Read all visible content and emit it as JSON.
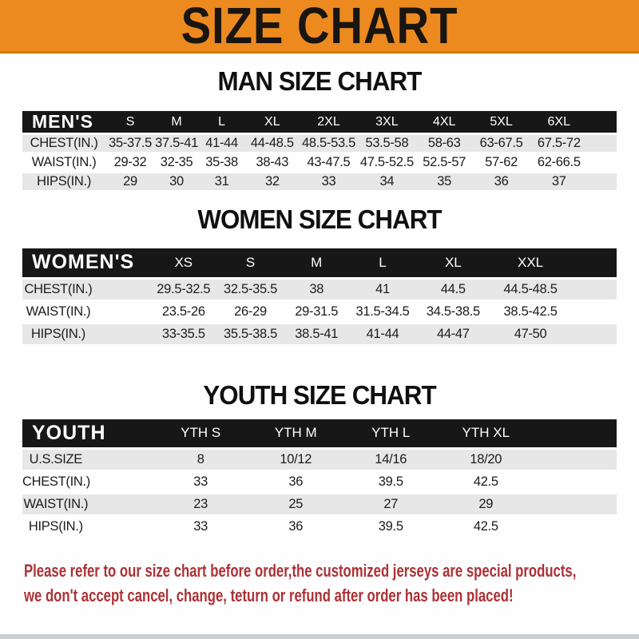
{
  "banner": {
    "title": "SIZE CHART"
  },
  "sections": [
    {
      "heading": "MAN SIZE CHART",
      "table": {
        "header_label": "MEN'S",
        "columns": [
          "S",
          "M",
          "L",
          "XL",
          "2XL",
          "3XL",
          "4XL",
          "5XL",
          "6XL"
        ],
        "rows": [
          {
            "label": "CHEST(IN.)",
            "values": [
              "35-37.5",
              "37.5-41",
              "41-44",
              "44-48.5",
              "48.5-53.5",
              "53.5-58",
              "58-63",
              "63-67.5",
              "67.5-72"
            ]
          },
          {
            "label": "WAIST(IN.)",
            "values": [
              "29-32",
              "32-35",
              "35-38",
              "38-43",
              "43-47.5",
              "47.5-52.5",
              "52.5-57",
              "57-62",
              "62-66.5"
            ]
          },
          {
            "label": "HIPS(IN.)",
            "values": [
              "29",
              "30",
              "31",
              "32",
              "33",
              "34",
              "35",
              "36",
              "37"
            ]
          }
        ]
      }
    },
    {
      "heading": "WOMEN SIZE CHART",
      "table": {
        "header_label": "WOMEN'S",
        "columns": [
          "XS",
          "S",
          "M",
          "L",
          "XL",
          "XXL"
        ],
        "rows": [
          {
            "label": "CHEST(IN.)",
            "values": [
              "29.5-32.5",
              "32.5-35.5",
              "38",
              "41",
              "44.5",
              "44.5-48.5"
            ]
          },
          {
            "label": "WAIST(IN.)",
            "values": [
              "23.5-26",
              "26-29",
              "29-31.5",
              "31.5-34.5",
              "34.5-38.5",
              "38.5-42.5"
            ]
          },
          {
            "label": "HIPS(IN.)",
            "values": [
              "33-35.5",
              "35.5-38.5",
              "38.5-41",
              "41-44",
              "44-47",
              "47-50"
            ]
          }
        ]
      }
    },
    {
      "heading": "YOUTH SIZE CHART",
      "table": {
        "header_label": "YOUTH",
        "columns": [
          "YTH S",
          "YTH M",
          "YTH L",
          "YTH XL"
        ],
        "rows": [
          {
            "label": "U.S.SIZE",
            "values": [
              "8",
              "10/12",
              "14/16",
              "18/20"
            ]
          },
          {
            "label": "CHEST(IN.)",
            "values": [
              "33",
              "36",
              "39.5",
              "42.5"
            ]
          },
          {
            "label": "WAIST(IN.)",
            "values": [
              "23",
              "25",
              "27",
              "29"
            ]
          },
          {
            "label": "HIPS(IN.)",
            "values": [
              "33",
              "36",
              "39.5",
              "42.5"
            ]
          }
        ]
      }
    }
  ],
  "footer": {
    "lines": [
      "Please refer to our size chart before order,the customized jerseys are special products,",
      "we don't accept cancel, change, teturn or refund after order has been placed!"
    ]
  },
  "colors": {
    "banner-bg": "#EC8A20",
    "banner-border": "#D2770E",
    "banner-text": "#191511",
    "bar-bg": "#171717",
    "bar-text": "#FFFFFF",
    "row-gray": "#E7E7E7",
    "page-bg": "#FEFEFE",
    "data-text": "#1C1C1C",
    "footer-red": "#AC3136",
    "bottom-strip": "#CDD0D3"
  }
}
